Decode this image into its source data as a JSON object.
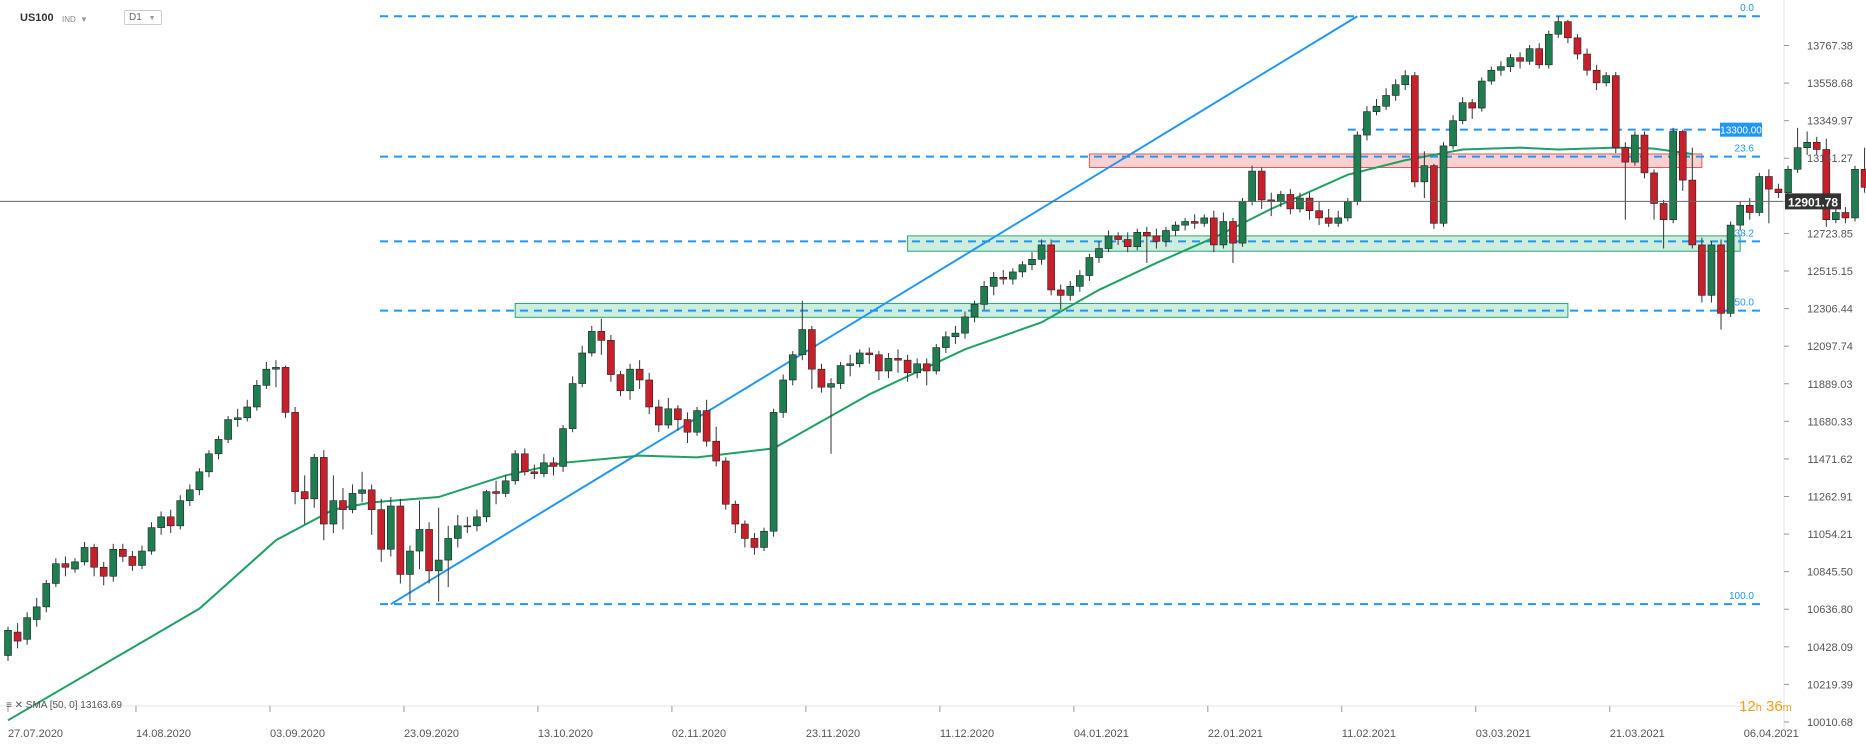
{
  "header": {
    "symbol": "US100",
    "type_badge": "IND",
    "timeframe": "D1"
  },
  "indicator": {
    "legend": "SMA [50, 0] 13163.69"
  },
  "timer": {
    "hours": "12",
    "h": "h",
    "minutes": "36",
    "m": "m"
  },
  "chart_data": {
    "type": "candlestick",
    "instrument": "US100",
    "timeframe": "D1",
    "ylim": [
      10010.68,
      13900
    ],
    "y_ticks": [
      13767.38,
      13558.68,
      13349.97,
      13141.27,
      12932.56,
      12723.85,
      12515.15,
      12306.44,
      12097.74,
      11889.03,
      11680.33,
      11471.62,
      11262.91,
      11054.21,
      10845.5,
      10636.8,
      10428.09,
      10219.39,
      10010.68
    ],
    "y_tick_labels": [
      "13767.38",
      "13558.68",
      "13349.97",
      "13141.27",
      "12932.56",
      "12723.85",
      "12515.15",
      "12306.44",
      "12097.74",
      "11889.03",
      "11680.33",
      "11471.62",
      "11262.91",
      "11054.21",
      "10845.50",
      "10636.80",
      "10428.09",
      "10219.39",
      "10010.68"
    ],
    "x_ticks": [
      {
        "label": "27.07.2020",
        "index": 0
      },
      {
        "label": "14.08.2020",
        "index": 14
      },
      {
        "label": "03.09.2020",
        "index": 28
      },
      {
        "label": "23.09.2020",
        "index": 42
      },
      {
        "label": "13.10.2020",
        "index": 56
      },
      {
        "label": "02.11.2020",
        "index": 70
      },
      {
        "label": "23.11.2020",
        "index": 84
      },
      {
        "label": "11.12.2020",
        "index": 98
      },
      {
        "label": "04.01.2021",
        "index": 112
      },
      {
        "label": "22.01.2021",
        "index": 126
      },
      {
        "label": "11.02.2021",
        "index": 140
      },
      {
        "label": "03.03.2021",
        "index": 154
      },
      {
        "label": "21.03.2021",
        "index": 168
      },
      {
        "label": "06.04.2021",
        "index": 182
      }
    ],
    "last_price": 12901.78,
    "last_price_label": "12901.78",
    "level_13300": {
      "value": 13300,
      "label": "13300.00"
    },
    "fibonacci": {
      "high": 13930,
      "low": 10665,
      "levels": [
        {
          "label": "0.0",
          "value": 13930
        },
        {
          "label": "23.6",
          "value": 13150
        },
        {
          "label": "38.2",
          "value": 12680
        },
        {
          "label": "50.0",
          "value": 12295
        },
        {
          "label": "100.0",
          "value": 10665
        }
      ]
    },
    "zones": [
      {
        "type": "resistance",
        "from_index": 113,
        "to_index": 177,
        "low": 13090,
        "high": 13165
      },
      {
        "type": "support",
        "from_index": 94,
        "to_index": 181,
        "low": 12625,
        "high": 12710
      },
      {
        "type": "support",
        "from_index": 53,
        "to_index": 163,
        "low": 12258,
        "high": 12335
      }
    ],
    "trendline": {
      "from_index": 40,
      "from_value": 10665,
      "to_index": 141,
      "to_value": 13930
    },
    "sma": {
      "name": "SMA [50, 0]",
      "value": 13163.69,
      "color": "#1fa065",
      "points": [
        [
          0,
          10020
        ],
        [
          10,
          10330
        ],
        [
          20,
          10640
        ],
        [
          28,
          11020
        ],
        [
          34,
          11190
        ],
        [
          38,
          11230
        ],
        [
          45,
          11260
        ],
        [
          52,
          11380
        ],
        [
          58,
          11450
        ],
        [
          66,
          11490
        ],
        [
          72,
          11480
        ],
        [
          80,
          11530
        ],
        [
          90,
          11830
        ],
        [
          100,
          12080
        ],
        [
          108,
          12230
        ],
        [
          114,
          12410
        ],
        [
          120,
          12560
        ],
        [
          126,
          12700
        ],
        [
          132,
          12860
        ],
        [
          140,
          13050
        ],
        [
          146,
          13130
        ],
        [
          152,
          13190
        ],
        [
          158,
          13200
        ],
        [
          162,
          13190
        ],
        [
          168,
          13200
        ],
        [
          172,
          13195
        ],
        [
          176,
          13165
        ]
      ]
    },
    "candles": [
      [
        10380,
        10520,
        10350,
        10540
      ],
      [
        10510,
        10460,
        10420,
        10560
      ],
      [
        10470,
        10590,
        10440,
        10620
      ],
      [
        10580,
        10650,
        10540,
        10700
      ],
      [
        10650,
        10780,
        10620,
        10800
      ],
      [
        10780,
        10890,
        10760,
        10920
      ],
      [
        10890,
        10870,
        10820,
        10930
      ],
      [
        10860,
        10900,
        10840,
        10920
      ],
      [
        10900,
        10980,
        10880,
        11010
      ],
      [
        10980,
        10870,
        10820,
        11000
      ],
      [
        10870,
        10820,
        10770,
        10900
      ],
      [
        10820,
        10970,
        10790,
        11000
      ],
      [
        10970,
        10930,
        10900,
        11000
      ],
      [
        10930,
        10880,
        10850,
        10960
      ],
      [
        10880,
        10960,
        10860,
        10990
      ],
      [
        10960,
        11090,
        10940,
        11120
      ],
      [
        11090,
        11150,
        11050,
        11180
      ],
      [
        11150,
        11100,
        11060,
        11190
      ],
      [
        11100,
        11240,
        11080,
        11270
      ],
      [
        11240,
        11300,
        11210,
        11330
      ],
      [
        11300,
        11400,
        11270,
        11420
      ],
      [
        11400,
        11500,
        11370,
        11520
      ],
      [
        11500,
        11580,
        11470,
        11600
      ],
      [
        11580,
        11690,
        11560,
        11710
      ],
      [
        11690,
        11700,
        11650,
        11750
      ],
      [
        11700,
        11760,
        11680,
        11800
      ],
      [
        11760,
        11880,
        11740,
        11910
      ],
      [
        11880,
        11970,
        11860,
        12010
      ],
      [
        11970,
        11980,
        11870,
        12020
      ],
      [
        11980,
        11730,
        11700,
        11990
      ],
      [
        11730,
        11290,
        11220,
        11760
      ],
      [
        11290,
        11250,
        11110,
        11380
      ],
      [
        11250,
        11480,
        11200,
        11500
      ],
      [
        11480,
        11110,
        11020,
        11520
      ],
      [
        11110,
        11240,
        11060,
        11380
      ],
      [
        11240,
        11190,
        11080,
        11310
      ],
      [
        11190,
        11280,
        11170,
        11330
      ],
      [
        11280,
        11300,
        11230,
        11400
      ],
      [
        11300,
        11190,
        11050,
        11330
      ],
      [
        11190,
        10970,
        10900,
        11250
      ],
      [
        10970,
        11210,
        10930,
        11260
      ],
      [
        11210,
        10830,
        10780,
        11250
      ],
      [
        10830,
        10960,
        10680,
        10990
      ],
      [
        10960,
        11080,
        10860,
        11240
      ],
      [
        11080,
        10850,
        10780,
        11120
      ],
      [
        10850,
        10910,
        10680,
        11200
      ],
      [
        10910,
        11030,
        10760,
        11100
      ],
      [
        11030,
        11100,
        10980,
        11160
      ],
      [
        11100,
        11100,
        11060,
        11150
      ],
      [
        11100,
        11150,
        11070,
        11190
      ],
      [
        11150,
        11290,
        11120,
        11300
      ],
      [
        11290,
        11280,
        11220,
        11350
      ],
      [
        11280,
        11350,
        11260,
        11380
      ],
      [
        11350,
        11500,
        11330,
        11520
      ],
      [
        11500,
        11400,
        11380,
        11530
      ],
      [
        11400,
        11390,
        11360,
        11440
      ],
      [
        11390,
        11450,
        11370,
        11500
      ],
      [
        11450,
        11430,
        11380,
        11480
      ],
      [
        11430,
        11640,
        11400,
        11660
      ],
      [
        11640,
        11890,
        11620,
        11930
      ],
      [
        11890,
        12060,
        11870,
        12100
      ],
      [
        12060,
        12180,
        12040,
        12210
      ],
      [
        12180,
        12130,
        12050,
        12250
      ],
      [
        12130,
        11940,
        11900,
        12160
      ],
      [
        11940,
        11850,
        11820,
        11960
      ],
      [
        11850,
        11970,
        11800,
        12000
      ],
      [
        11970,
        11910,
        11860,
        12020
      ],
      [
        11910,
        11760,
        11720,
        11950
      ],
      [
        11760,
        11660,
        11620,
        11800
      ],
      [
        11660,
        11750,
        11640,
        11810
      ],
      [
        11750,
        11690,
        11630,
        11770
      ],
      [
        11690,
        11620,
        11560,
        11730
      ],
      [
        11620,
        11740,
        11600,
        11760
      ],
      [
        11740,
        11570,
        11540,
        11800
      ],
      [
        11570,
        11460,
        11430,
        11650
      ],
      [
        11460,
        11220,
        11190,
        11480
      ],
      [
        11220,
        11110,
        11060,
        11240
      ],
      [
        11110,
        11030,
        10980,
        11130
      ],
      [
        11030,
        10980,
        10940,
        11060
      ],
      [
        10980,
        11070,
        10960,
        11090
      ],
      [
        11070,
        11730,
        11040,
        11750
      ],
      [
        11730,
        11910,
        11700,
        11940
      ],
      [
        11910,
        12050,
        11880,
        12070
      ],
      [
        12050,
        12190,
        12020,
        12350
      ],
      [
        12190,
        11970,
        11860,
        12210
      ],
      [
        11970,
        11870,
        11840,
        12000
      ],
      [
        11870,
        11890,
        11500,
        11920
      ],
      [
        11890,
        11990,
        11860,
        12010
      ],
      [
        11990,
        12000,
        11930,
        12050
      ],
      [
        12000,
        12060,
        11980,
        12080
      ],
      [
        12060,
        12050,
        12000,
        12090
      ],
      [
        12050,
        11960,
        11910,
        12070
      ],
      [
        11960,
        12030,
        11920,
        12060
      ],
      [
        12030,
        12020,
        11950,
        12080
      ],
      [
        12020,
        11950,
        11900,
        12050
      ],
      [
        11950,
        12000,
        11920,
        12030
      ],
      [
        12000,
        11960,
        11880,
        12030
      ],
      [
        11960,
        12090,
        11940,
        12110
      ],
      [
        12090,
        12150,
        12060,
        12180
      ],
      [
        12150,
        12170,
        12110,
        12210
      ],
      [
        12170,
        12260,
        12140,
        12290
      ],
      [
        12260,
        12330,
        12230,
        12350
      ],
      [
        12330,
        12430,
        12300,
        12460
      ],
      [
        12430,
        12480,
        12380,
        12510
      ],
      [
        12480,
        12470,
        12440,
        12520
      ],
      [
        12470,
        12510,
        12440,
        12530
      ],
      [
        12510,
        12550,
        12480,
        12570
      ],
      [
        12550,
        12580,
        12520,
        12620
      ],
      [
        12580,
        12660,
        12550,
        12690
      ],
      [
        12660,
        12410,
        12380,
        12690
      ],
      [
        12410,
        12380,
        12300,
        12440
      ],
      [
        12380,
        12430,
        12350,
        12460
      ],
      [
        12430,
        12490,
        12400,
        12520
      ],
      [
        12490,
        12590,
        12460,
        12610
      ],
      [
        12590,
        12640,
        12560,
        12680
      ],
      [
        12640,
        12710,
        12620,
        12740
      ],
      [
        12710,
        12690,
        12660,
        12730
      ],
      [
        12690,
        12650,
        12620,
        12730
      ],
      [
        12650,
        12730,
        12630,
        12750
      ],
      [
        12730,
        12710,
        12560,
        12760
      ],
      [
        12710,
        12680,
        12640,
        12750
      ],
      [
        12680,
        12740,
        12650,
        12760
      ],
      [
        12740,
        12770,
        12710,
        12790
      ],
      [
        12770,
        12790,
        12740,
        12810
      ],
      [
        12790,
        12780,
        12750,
        12830
      ],
      [
        12780,
        12810,
        12760,
        12830
      ],
      [
        12810,
        12660,
        12620,
        12850
      ],
      [
        12660,
        12790,
        12640,
        12840
      ],
      [
        12790,
        12670,
        12560,
        12810
      ],
      [
        12670,
        12900,
        12650,
        12920
      ],
      [
        12900,
        13070,
        12880,
        13100
      ],
      [
        13070,
        12910,
        12860,
        13090
      ],
      [
        12910,
        12900,
        12820,
        12950
      ],
      [
        12900,
        12940,
        12870,
        12960
      ],
      [
        12940,
        12860,
        12830,
        12970
      ],
      [
        12860,
        12920,
        12840,
        12950
      ],
      [
        12920,
        12850,
        12800,
        12950
      ],
      [
        12850,
        12810,
        12770,
        12900
      ],
      [
        12810,
        12780,
        12760,
        12860
      ],
      [
        12780,
        12810,
        12760,
        12850
      ],
      [
        12810,
        12900,
        12790,
        12920
      ],
      [
        12900,
        13270,
        12880,
        13290
      ],
      [
        13270,
        13400,
        13240,
        13430
      ],
      [
        13400,
        13430,
        13380,
        13470
      ],
      [
        13430,
        13490,
        13410,
        13530
      ],
      [
        13490,
        13550,
        13460,
        13580
      ],
      [
        13550,
        13600,
        13520,
        13630
      ],
      [
        13600,
        13010,
        12980,
        13620
      ],
      [
        13010,
        13100,
        12920,
        13180
      ],
      [
        13100,
        12780,
        12750,
        13110
      ],
      [
        12780,
        13210,
        12760,
        13230
      ],
      [
        13210,
        13350,
        13190,
        13380
      ],
      [
        13350,
        13450,
        13330,
        13480
      ],
      [
        13450,
        13420,
        13360,
        13470
      ],
      [
        13420,
        13570,
        13400,
        13590
      ],
      [
        13570,
        13630,
        13550,
        13650
      ],
      [
        13630,
        13650,
        13600,
        13680
      ],
      [
        13650,
        13700,
        13620,
        13720
      ],
      [
        13700,
        13680,
        13640,
        13730
      ],
      [
        13680,
        13750,
        13660,
        13770
      ],
      [
        13750,
        13660,
        13640,
        13780
      ],
      [
        13660,
        13830,
        13640,
        13850
      ],
      [
        13830,
        13900,
        13810,
        13930
      ],
      [
        13900,
        13810,
        13780,
        13910
      ],
      [
        13810,
        13720,
        13690,
        13830
      ],
      [
        13720,
        13630,
        13600,
        13750
      ],
      [
        13630,
        13560,
        13520,
        13660
      ],
      [
        13560,
        13600,
        13540,
        13620
      ],
      [
        13600,
        13200,
        13170,
        13620
      ],
      [
        13200,
        13120,
        12800,
        13230
      ],
      [
        13120,
        13270,
        13100,
        13290
      ],
      [
        13270,
        13060,
        13030,
        13290
      ],
      [
        13060,
        12890,
        12800,
        13080
      ],
      [
        12890,
        12800,
        12640,
        12910
      ],
      [
        12800,
        13290,
        12780,
        13310
      ],
      [
        13290,
        13020,
        12960,
        13300
      ],
      [
        13020,
        12660,
        12640,
        13200
      ],
      [
        12660,
        12380,
        12340,
        12700
      ],
      [
        12380,
        12660,
        12340,
        12680
      ],
      [
        12660,
        12280,
        12190,
        12690
      ],
      [
        12280,
        12770,
        12260,
        12790
      ],
      [
        12770,
        12880,
        12740,
        12900
      ],
      [
        12880,
        12840,
        12800,
        12920
      ],
      [
        12840,
        13040,
        12820,
        13060
      ],
      [
        13040,
        12970,
        12780,
        13080
      ],
      [
        12970,
        12950,
        12920,
        13000
      ],
      [
        12950,
        13080,
        12930,
        13100
      ],
      [
        13080,
        13200,
        13060,
        13310
      ],
      [
        13200,
        13230,
        13160,
        13290
      ],
      [
        13230,
        13190,
        13160,
        13260
      ],
      [
        13190,
        12800,
        12760,
        13250
      ],
      [
        12800,
        12840,
        12780,
        12880
      ],
      [
        12840,
        12810,
        12780,
        12870
      ],
      [
        12810,
        13080,
        12790,
        13100
      ],
      [
        13080,
        12980,
        12950,
        13200
      ],
      [
        12980,
        12800,
        12780,
        13110
      ],
      [
        12800,
        12950,
        12790,
        12980
      ],
      [
        12950,
        12940,
        12900,
        12970
      ],
      [
        12940,
        12900,
        12860,
        12960
      ]
    ]
  }
}
